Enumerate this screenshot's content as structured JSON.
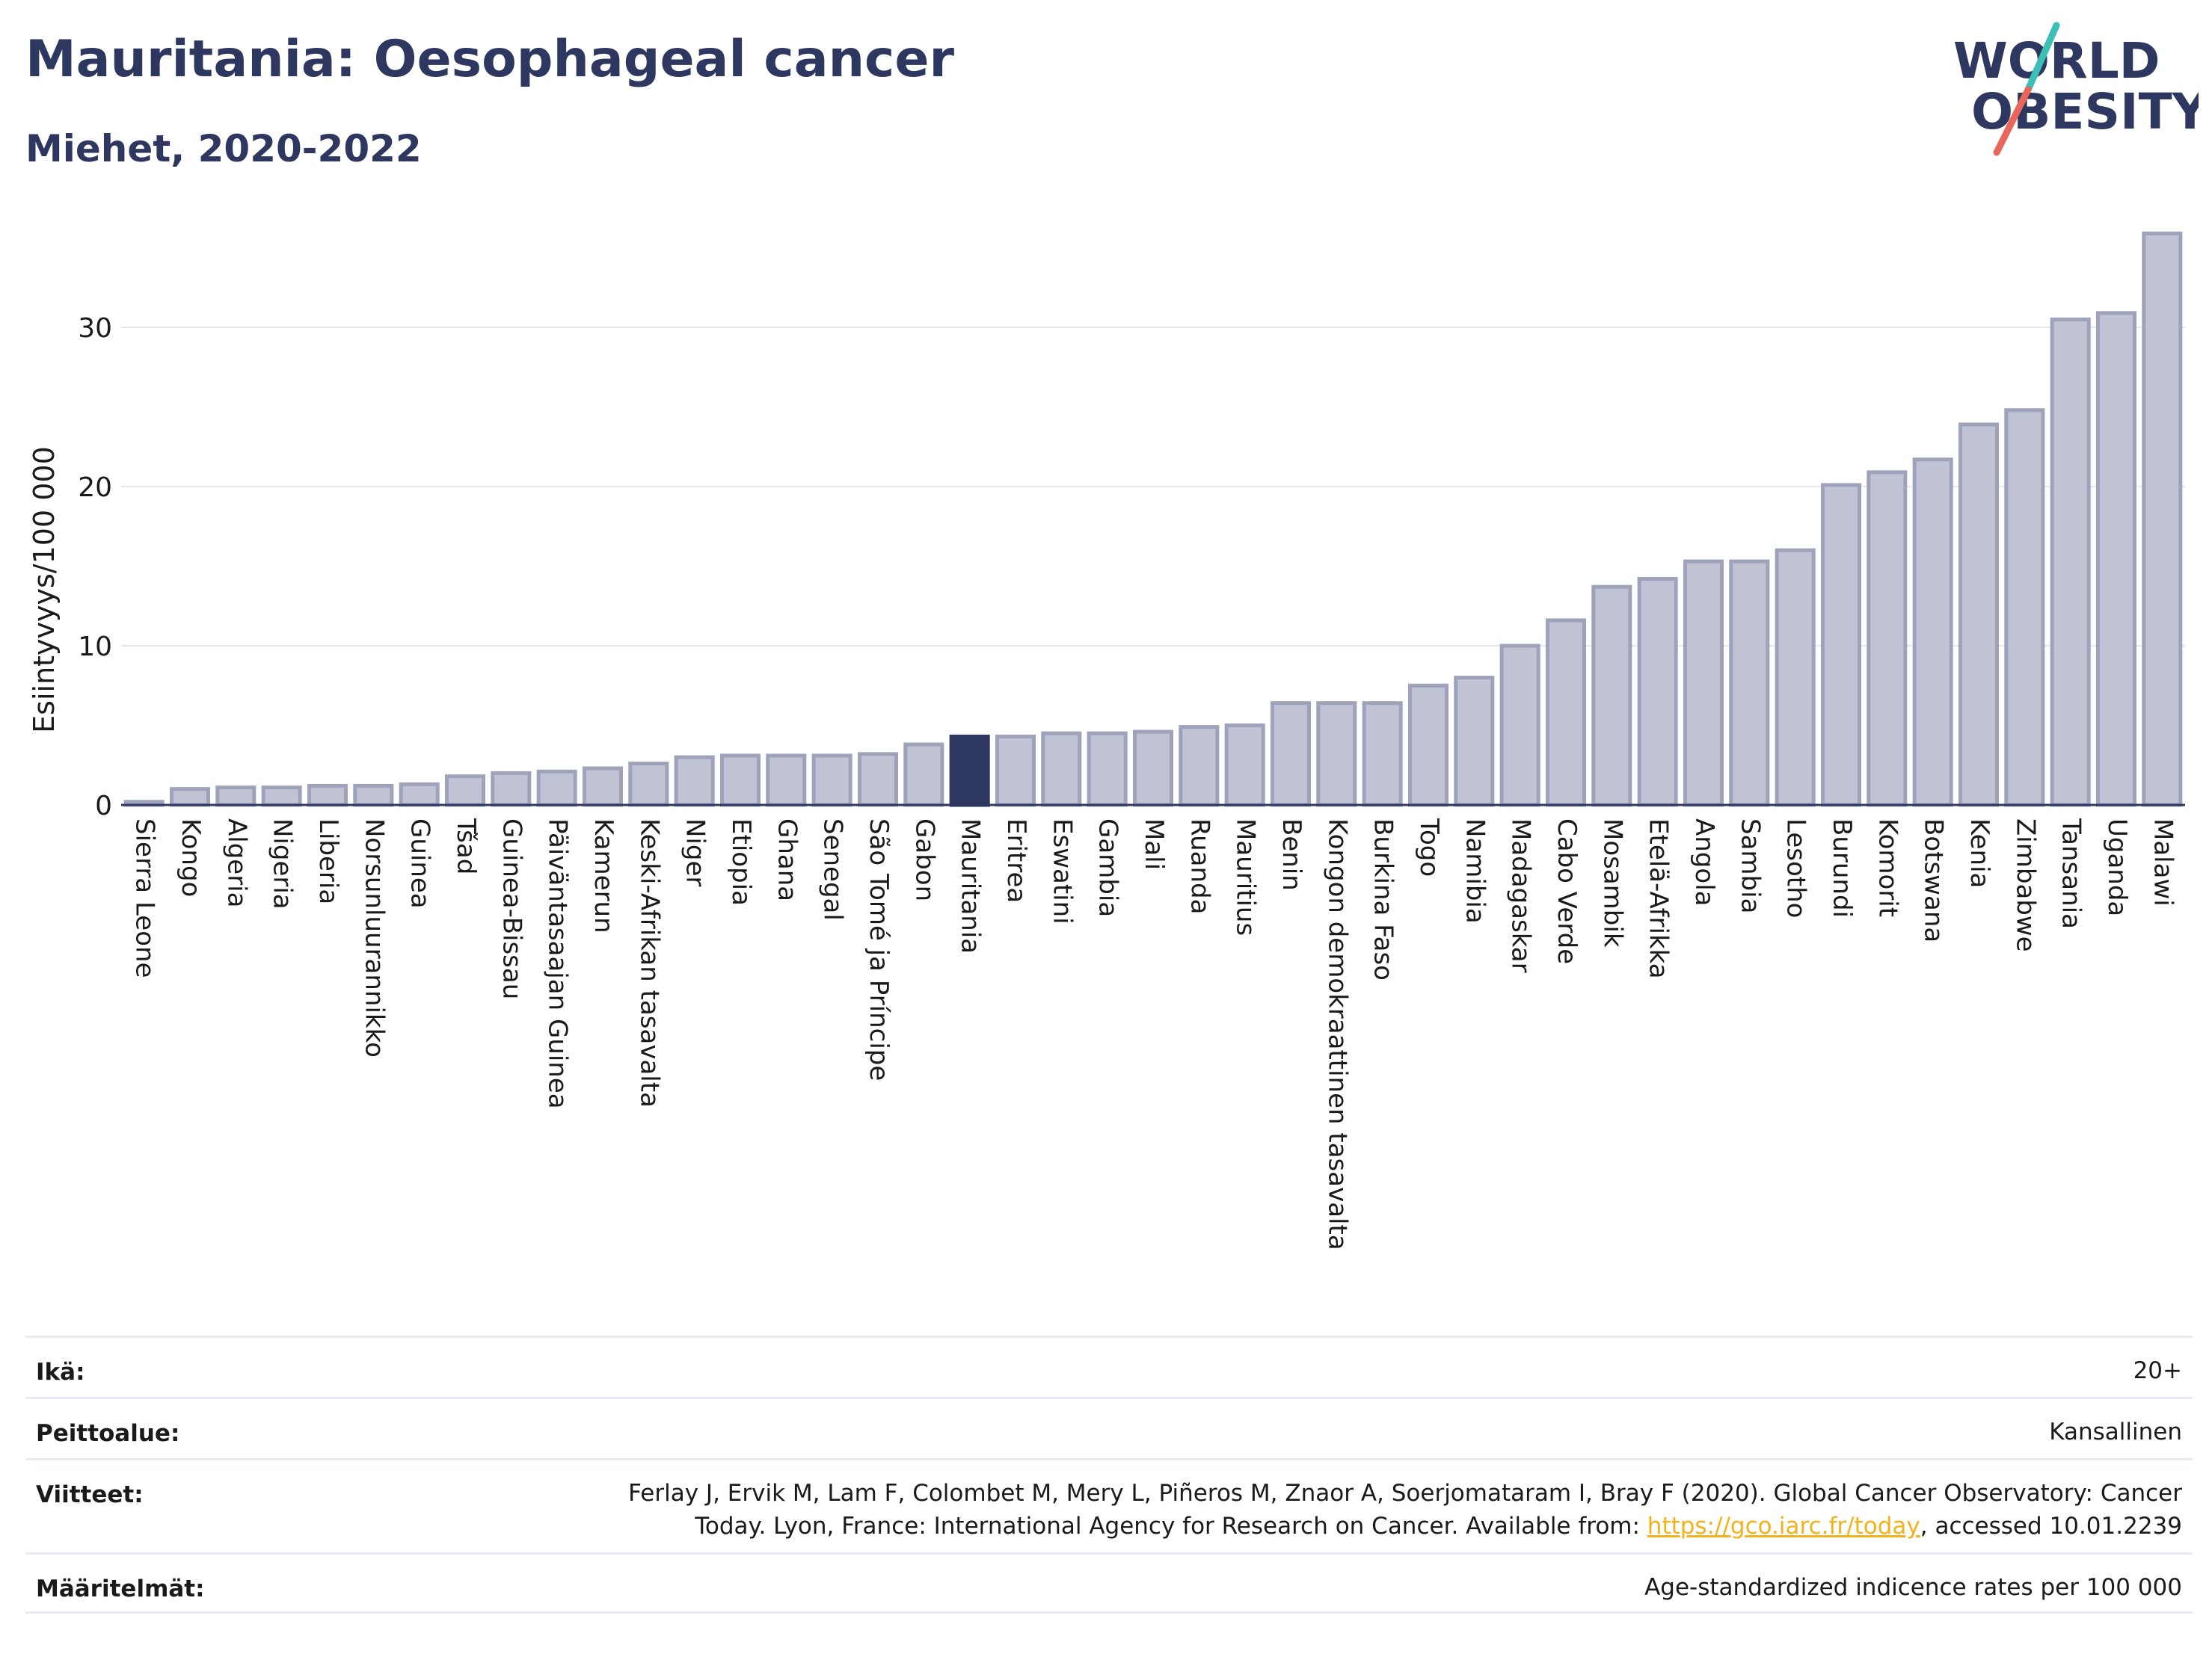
{
  "title": "Mauritania: Oesophageal cancer",
  "subtitle": "Miehet, 2020-2022",
  "logo": {
    "line1": "WORLD",
    "line2": "OBESITY",
    "accent_teal": "#3cbfb4",
    "accent_red": "#e8675a",
    "color": "#2d3760"
  },
  "chart_data": {
    "type": "bar",
    "ylabel": "Esiintyvyys/100 000",
    "xlabel": "",
    "ylim": [
      0,
      36.5
    ],
    "yticks": [
      0,
      10,
      20,
      30
    ],
    "grid": true,
    "highlight": "Mauritania",
    "colors": {
      "bar": "#bfc3d3",
      "bar_border": "#9ea3bb",
      "highlight": "#2d3760",
      "grid": "#e6e8ee",
      "axis": "#2d3760"
    },
    "categories": [
      "Sierra Leone",
      "Kongo",
      "Algeria",
      "Nigeria",
      "Liberia",
      "Norsunluurannikko",
      "Guinea",
      "Tšad",
      "Guinea-Bissau",
      "Päiväntasaajan Guinea",
      "Kamerun",
      "Keski-Afrikan tasavalta",
      "Niger",
      "Etiopia",
      "Ghana",
      "Senegal",
      "São Tomé ja Príncipe",
      "Gabon",
      "Mauritania",
      "Eritrea",
      "Eswatini",
      "Gambia",
      "Mali",
      "Ruanda",
      "Mauritius",
      "Benin",
      "Kongon demokraattinen tasavalta",
      "Burkina Faso",
      "Togo",
      "Namibia",
      "Madagaskar",
      "Cabo Verde",
      "Mosambik",
      "Etelä-Afrikka",
      "Angola",
      "Sambia",
      "Lesotho",
      "Burundi",
      "Komorit",
      "Botswana",
      "Kenia",
      "Zimbabwe",
      "Tansania",
      "Uganda",
      "Malawi"
    ],
    "values": [
      0.2,
      1.0,
      1.1,
      1.1,
      1.2,
      1.2,
      1.3,
      1.8,
      2.0,
      2.1,
      2.3,
      2.6,
      3.0,
      3.1,
      3.1,
      3.1,
      3.2,
      3.8,
      4.3,
      4.3,
      4.5,
      4.5,
      4.6,
      4.9,
      5.0,
      6.4,
      6.4,
      6.4,
      7.5,
      8.0,
      10.0,
      11.6,
      13.7,
      14.2,
      15.3,
      15.3,
      16.0,
      20.1,
      20.9,
      21.7,
      23.9,
      24.8,
      30.5,
      30.9,
      35.9
    ]
  },
  "info": {
    "age_label": "Ikä:",
    "age_value": "20+",
    "coverage_label": "Peittoalue:",
    "coverage_value": "Kansallinen",
    "refs_label": "Viitteet:",
    "refs_line1": "Ferlay J, Ervik M, Lam F, Colombet M, Mery L, Piñeros M, Znaor A, Soerjomataram I, Bray F (2020). Global Cancer Observatory: Cancer",
    "refs_line2_pre": "Today. Lyon, France: International Agency for Research on Cancer. Available from: ",
    "refs_link": "https://gco.iarc.fr/today",
    "refs_line2_post": ", accessed 10.01.2239",
    "defs_label": "Määritelmät:",
    "defs_value": "Age-standardized indicence rates per 100 000"
  }
}
